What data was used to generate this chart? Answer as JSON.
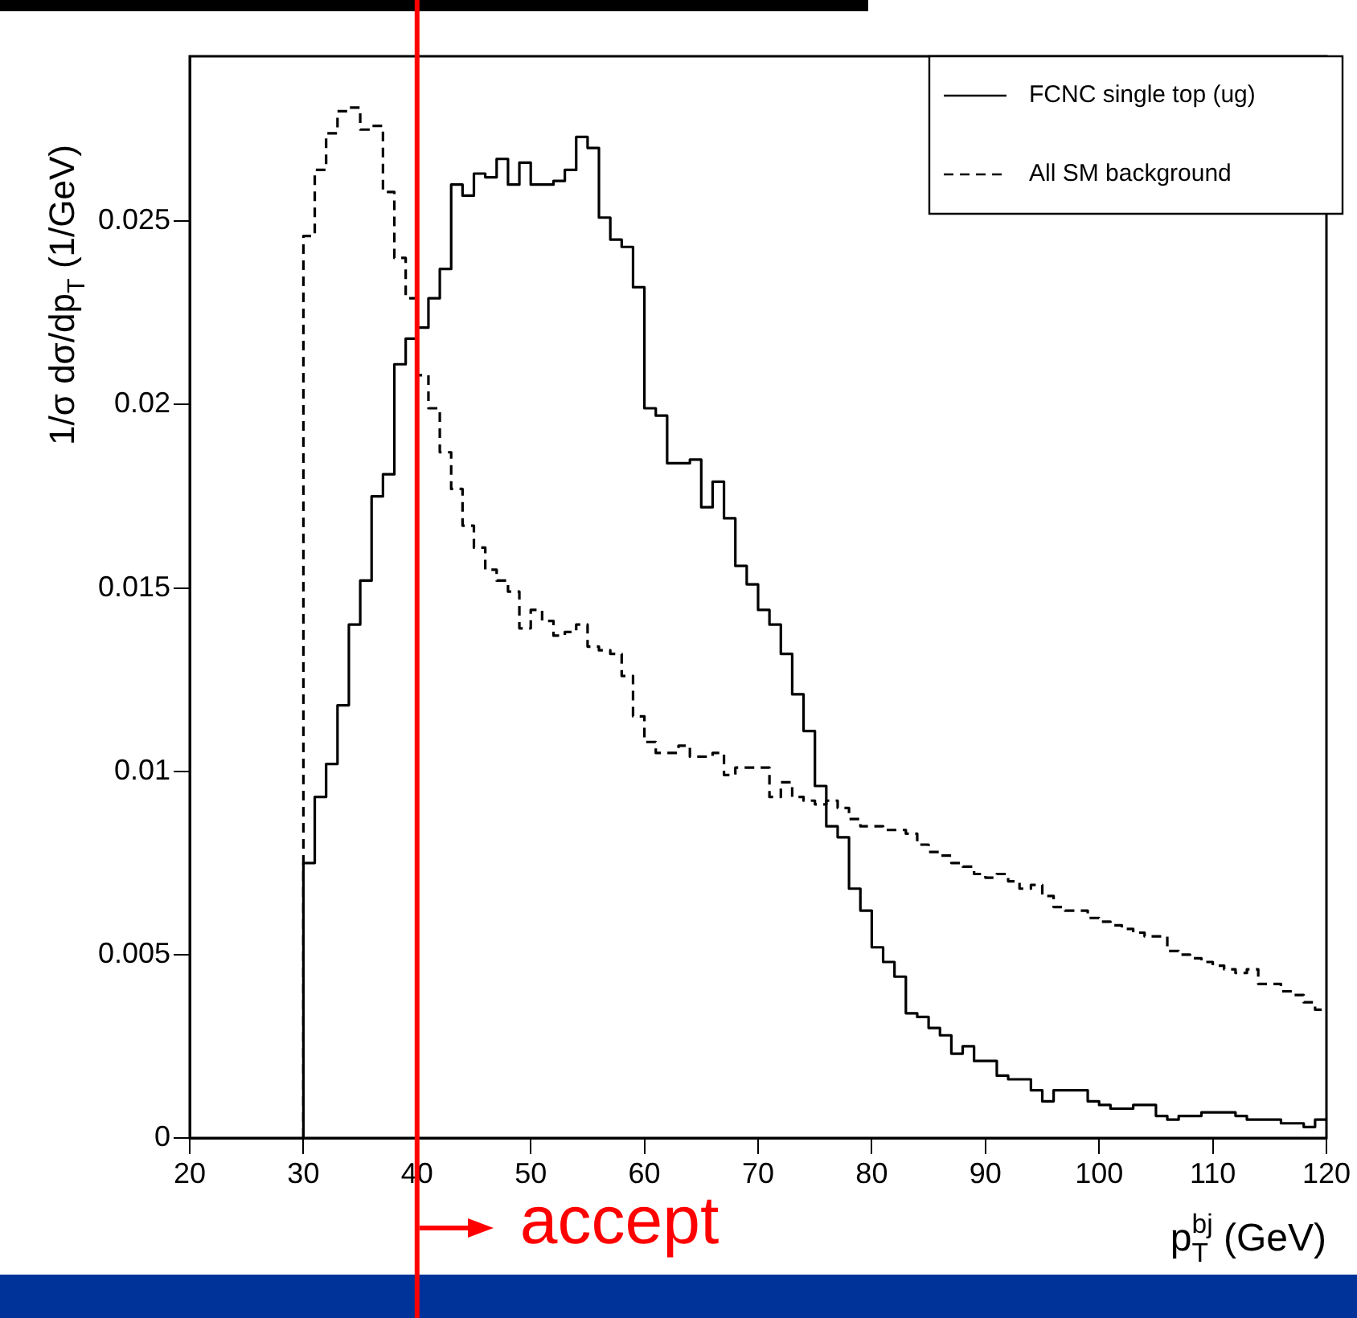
{
  "chart_data": {
    "type": "histogram",
    "xlabel": "p$_{T}$$^{bj}$ (GeV)",
    "ylabel": "1/σ dσ/dp$_{T}$ (1/GeV)",
    "bins": [
      30,
      31,
      32,
      33,
      34,
      35,
      36,
      37,
      38,
      39,
      40,
      41,
      42,
      43,
      44,
      45,
      46,
      47,
      48,
      49,
      50,
      51,
      52,
      53,
      54,
      55,
      56,
      57,
      58,
      59,
      60,
      61,
      62,
      63,
      64,
      65,
      66,
      67,
      68,
      69,
      70,
      71,
      72,
      73,
      74,
      75,
      76,
      77,
      78,
      79,
      80,
      81,
      82,
      83,
      84,
      85,
      86,
      87,
      88,
      89,
      90,
      91,
      92,
      93,
      94,
      95,
      96,
      97,
      98,
      99,
      100,
      101,
      102,
      103,
      104,
      105,
      106,
      107,
      108,
      109,
      110,
      111,
      112,
      113,
      114,
      115,
      116,
      117,
      118,
      119,
      120
    ],
    "series": [
      {
        "name": "FCNC single top (ug)",
        "color": "#000000",
        "line_style": "solid",
        "values": [
          0.0075,
          0.0093,
          0.0102,
          0.0118,
          0.014,
          0.0152,
          0.0175,
          0.0181,
          0.0211,
          0.0218,
          0.0221,
          0.0229,
          0.0237,
          0.026,
          0.0257,
          0.0263,
          0.0262,
          0.0267,
          0.026,
          0.0266,
          0.026,
          0.026,
          0.0261,
          0.0264,
          0.0273,
          0.027,
          0.0251,
          0.0245,
          0.0243,
          0.0232,
          0.0199,
          0.0197,
          0.0184,
          0.0184,
          0.0185,
          0.0172,
          0.0179,
          0.0169,
          0.0156,
          0.0151,
          0.0144,
          0.014,
          0.0132,
          0.0121,
          0.0111,
          0.0096,
          0.0085,
          0.0082,
          0.0068,
          0.0062,
          0.0052,
          0.0048,
          0.0044,
          0.0034,
          0.0033,
          0.003,
          0.0028,
          0.0023,
          0.0025,
          0.0021,
          0.0021,
          0.0017,
          0.0016,
          0.0016,
          0.0013,
          0.001,
          0.0013,
          0.0013,
          0.0013,
          0.001,
          0.0009,
          0.0008,
          0.0008,
          0.0009,
          0.0009,
          0.0006,
          0.0005,
          0.0006,
          0.0006,
          0.0007,
          0.0007,
          0.0007,
          0.0006,
          0.0005,
          0.0005,
          0.0005,
          0.0004,
          0.0004,
          0.0003,
          0.0005
        ]
      },
      {
        "name": "All SM background",
        "color": "#000000",
        "line_style": "dashed",
        "values": [
          0.0246,
          0.0264,
          0.0274,
          0.028,
          0.0281,
          0.0275,
          0.0276,
          0.0258,
          0.024,
          0.0229,
          0.0208,
          0.0199,
          0.0187,
          0.0177,
          0.0167,
          0.0161,
          0.0155,
          0.0152,
          0.0149,
          0.0139,
          0.0144,
          0.0141,
          0.0137,
          0.0138,
          0.014,
          0.0134,
          0.0133,
          0.0132,
          0.0126,
          0.0115,
          0.0108,
          0.0105,
          0.0105,
          0.0107,
          0.0104,
          0.0104,
          0.0105,
          0.0099,
          0.0101,
          0.0101,
          0.0101,
          0.0093,
          0.0097,
          0.0093,
          0.0092,
          0.0091,
          0.0092,
          0.009,
          0.0087,
          0.0085,
          0.0085,
          0.0084,
          0.0084,
          0.0083,
          0.008,
          0.0078,
          0.0077,
          0.0075,
          0.0074,
          0.0072,
          0.0071,
          0.0072,
          0.007,
          0.0068,
          0.0069,
          0.0066,
          0.0063,
          0.0062,
          0.0062,
          0.006,
          0.0059,
          0.0058,
          0.0057,
          0.0056,
          0.0055,
          0.0055,
          0.0051,
          0.005,
          0.0049,
          0.0048,
          0.0047,
          0.0046,
          0.0045,
          0.0046,
          0.0042,
          0.0042,
          0.004,
          0.0039,
          0.0037,
          0.0035
        ]
      }
    ],
    "xlim": [
      20,
      120
    ],
    "xticks": [
      20,
      30,
      40,
      50,
      60,
      70,
      80,
      90,
      100,
      110,
      120
    ],
    "ylim": [
      0,
      0.0295
    ],
    "yticks": [
      0,
      0.005,
      0.01,
      0.015,
      0.02,
      0.025
    ],
    "ref_lines": [
      {
        "axis": "x",
        "value": 40,
        "label": "accept",
        "color": "#ff0000"
      }
    ],
    "legend": "top right"
  }
}
